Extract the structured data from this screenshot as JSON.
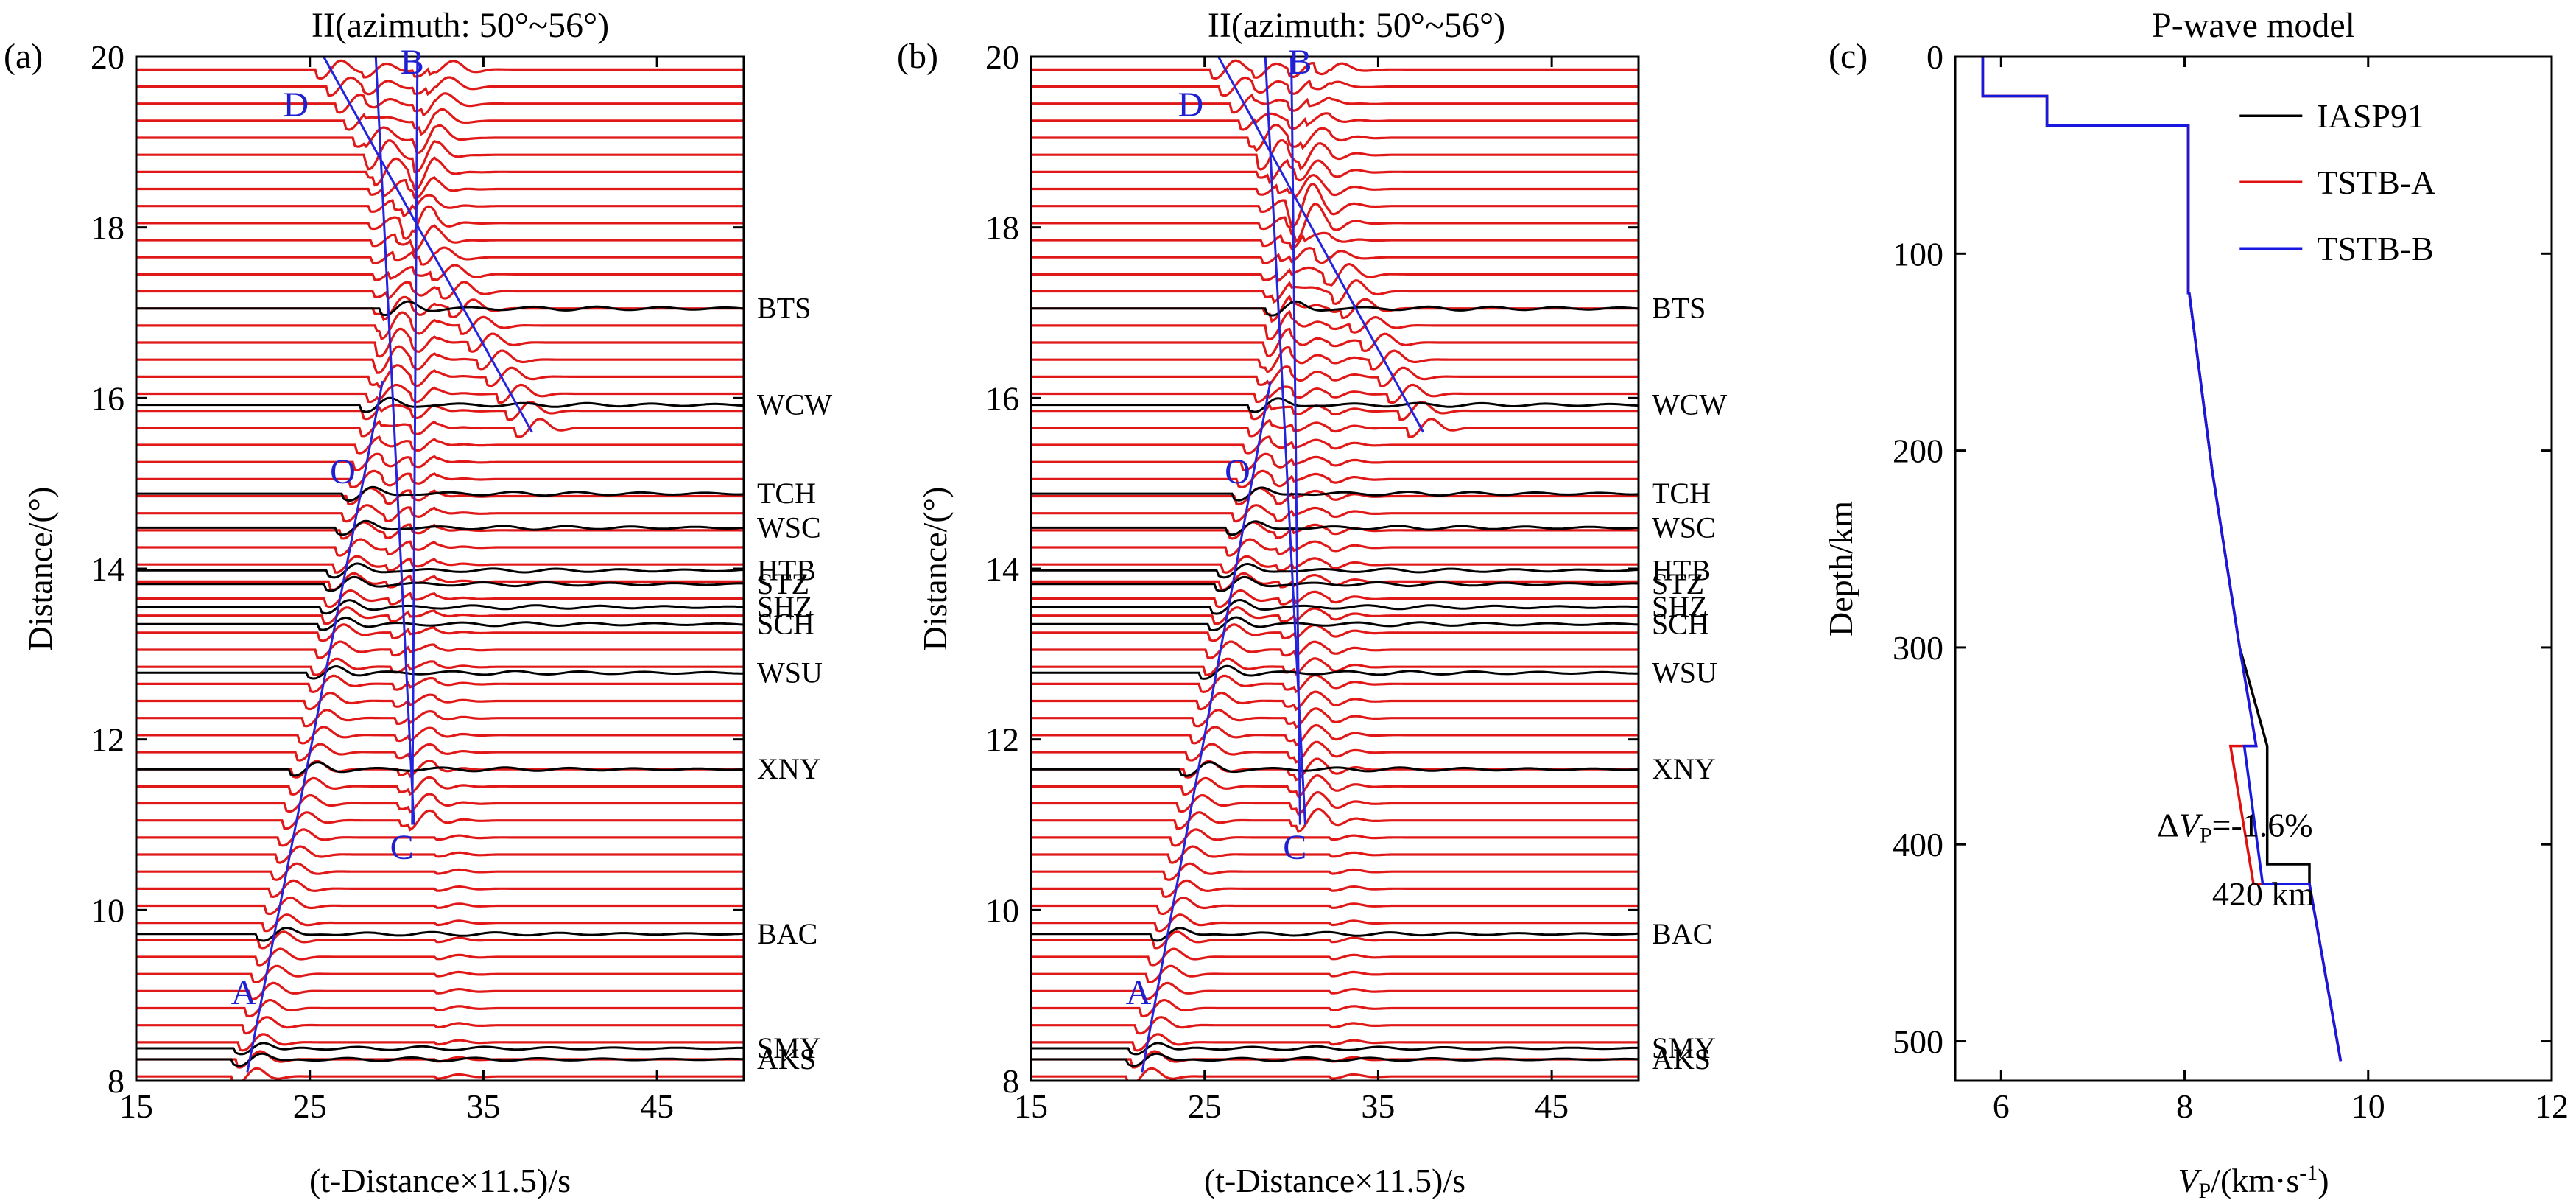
{
  "chart_data": [
    {
      "type": "line",
      "panel_label": "(a)",
      "title": "II(azimuth: 50°~56°)",
      "xlabel": "(t-Distance×11.5)/s",
      "ylabel": "Distance/(°)",
      "xlim": [
        15,
        50
      ],
      "ylim": [
        8,
        20
      ],
      "xticks": [
        "15",
        "25",
        "35",
        "45"
      ],
      "xtick_values": [
        15,
        25,
        35,
        45
      ],
      "yticks": [
        "8",
        "10",
        "12",
        "14",
        "16",
        "18",
        "20"
      ],
      "ytick_values": [
        8,
        10,
        12,
        14,
        16,
        18,
        20
      ],
      "synthetic_trace_spacing_deg": 0.2,
      "observed_stations": [
        {
          "name": "BTS",
          "distance": 17.05
        },
        {
          "name": "WCW",
          "distance": 15.92
        },
        {
          "name": "TCH",
          "distance": 14.88
        },
        {
          "name": "WSC",
          "distance": 14.48
        },
        {
          "name": "HTB",
          "distance": 13.98
        },
        {
          "name": "STZ",
          "distance": 13.82
        },
        {
          "name": "SHZ",
          "distance": 13.55
        },
        {
          "name": "SCH",
          "distance": 13.35
        },
        {
          "name": "WSU",
          "distance": 12.78
        },
        {
          "name": "XNY",
          "distance": 11.65
        },
        {
          "name": "BAC",
          "distance": 9.72
        },
        {
          "name": "SMY",
          "distance": 8.38
        },
        {
          "name": "AKS",
          "distance": 8.25
        }
      ],
      "branches": [
        {
          "name": "A",
          "x": [
            21.4,
            29.2
          ],
          "y": [
            8.1,
            16.2
          ]
        },
        {
          "name": "B",
          "x": [
            30.9,
            31.2
          ],
          "y": [
            11.0,
            20.0
          ]
        },
        {
          "name": "C",
          "x": [
            28.8,
            31.0
          ],
          "y": [
            20.0,
            11.0
          ]
        },
        {
          "name": "D",
          "x": [
            25.8,
            37.8
          ],
          "y": [
            20.0,
            15.6
          ]
        }
      ],
      "phase_labels": [
        {
          "text": "A",
          "x": 21.2,
          "y": 8.9
        },
        {
          "text": "B",
          "x": 30.9,
          "y": 19.8
        },
        {
          "text": "C",
          "x": 30.3,
          "y": 10.6
        },
        {
          "text": "D",
          "x": 24.2,
          "y": 19.3
        },
        {
          "text": "O",
          "x": 26.9,
          "y": 15.0
        }
      ]
    },
    {
      "type": "line",
      "panel_label": "(b)",
      "title": "II(azimuth: 50°~56°)",
      "xlabel": "(t-Distance×11.5)/s",
      "ylabel": "Distance/(°)",
      "xlim": [
        15,
        50
      ],
      "ylim": [
        8,
        20
      ],
      "xticks": [
        "15",
        "25",
        "35",
        "45"
      ],
      "xtick_values": [
        15,
        25,
        35,
        45
      ],
      "yticks": [
        "8",
        "10",
        "12",
        "14",
        "16",
        "18",
        "20"
      ],
      "ytick_values": [
        8,
        10,
        12,
        14,
        16,
        18,
        20
      ],
      "synthetic_trace_spacing_deg": 0.2,
      "observed_stations": [
        {
          "name": "BTS",
          "distance": 17.05
        },
        {
          "name": "WCW",
          "distance": 15.92
        },
        {
          "name": "TCH",
          "distance": 14.88
        },
        {
          "name": "WSC",
          "distance": 14.48
        },
        {
          "name": "HTB",
          "distance": 13.98
        },
        {
          "name": "STZ",
          "distance": 13.82
        },
        {
          "name": "SHZ",
          "distance": 13.55
        },
        {
          "name": "SCH",
          "distance": 13.35
        },
        {
          "name": "WSU",
          "distance": 12.78
        },
        {
          "name": "XNY",
          "distance": 11.65
        },
        {
          "name": "BAC",
          "distance": 9.72
        },
        {
          "name": "SMY",
          "distance": 8.38
        },
        {
          "name": "AKS",
          "distance": 8.25
        }
      ],
      "branches": [
        {
          "name": "A",
          "x": [
            21.4,
            28.8
          ],
          "y": [
            8.1,
            16.2
          ]
        },
        {
          "name": "B",
          "x": [
            30.5,
            30.0
          ],
          "y": [
            11.0,
            20.0
          ]
        },
        {
          "name": "C",
          "x": [
            28.5,
            30.8
          ],
          "y": [
            20.0,
            11.0
          ]
        },
        {
          "name": "D",
          "x": [
            25.8,
            37.6
          ],
          "y": [
            20.0,
            15.6
          ]
        }
      ],
      "phase_labels": [
        {
          "text": "A",
          "x": 21.2,
          "y": 8.9
        },
        {
          "text": "B",
          "x": 30.5,
          "y": 19.8
        },
        {
          "text": "C",
          "x": 30.2,
          "y": 10.6
        },
        {
          "text": "D",
          "x": 24.2,
          "y": 19.3
        },
        {
          "text": "O",
          "x": 26.9,
          "y": 15.0
        }
      ]
    },
    {
      "type": "line",
      "panel_label": "(c)",
      "title": "P-wave model",
      "xlabel": "VP/(km·s-1)",
      "xlabel_parts": {
        "symbol": "V",
        "sub": "P",
        "unit": "/(km·s",
        "sup": "-1",
        "close": ")"
      },
      "ylabel": "Depth/km",
      "xlim": [
        5.5,
        12
      ],
      "ylim": [
        0,
        520
      ],
      "y_inverted": true,
      "xticks": [
        "6",
        "8",
        "10",
        "12"
      ],
      "xtick_values": [
        6,
        8,
        10,
        12
      ],
      "yticks": [
        "0",
        "100",
        "200",
        "300",
        "400",
        "500"
      ],
      "ytick_values": [
        0,
        100,
        200,
        300,
        400,
        500
      ],
      "series": [
        {
          "name": "IASP91",
          "color": "#000000",
          "x": [
            5.8,
            5.8,
            6.5,
            6.5,
            8.04,
            8.04,
            8.05,
            8.3,
            8.6,
            8.9,
            8.9,
            9.36,
            9.36,
            9.7
          ],
          "y": [
            0,
            20,
            20,
            35,
            35,
            120,
            120,
            210,
            300,
            350,
            410,
            410,
            420,
            510
          ]
        },
        {
          "name": "TSTB-A",
          "color": "#e01010",
          "x": [
            5.8,
            5.8,
            6.5,
            6.5,
            8.04,
            8.04,
            8.05,
            8.3,
            8.6,
            8.78,
            8.5,
            8.75,
            9.36,
            9.36,
            9.7
          ],
          "y": [
            0,
            20,
            20,
            35,
            35,
            120,
            120,
            210,
            300,
            350,
            350,
            420,
            420,
            420,
            510
          ]
        },
        {
          "name": "TSTB-B",
          "color": "#1818e0",
          "x": [
            5.8,
            5.8,
            6.5,
            6.5,
            8.04,
            8.04,
            8.05,
            8.3,
            8.6,
            8.78,
            8.65,
            8.85,
            9.36,
            9.36,
            9.7
          ],
          "y": [
            0,
            20,
            20,
            35,
            35,
            120,
            120,
            210,
            300,
            350,
            350,
            420,
            420,
            420,
            510
          ]
        }
      ],
      "annotations": [
        {
          "text_prefix": "Δ",
          "symbol": "V",
          "sub": "P",
          "value": "=-1.6%",
          "x": 7.7,
          "y": 390
        },
        {
          "text": "420 km",
          "x": 8.3,
          "y": 425
        }
      ],
      "legend_position": "top-right"
    }
  ]
}
